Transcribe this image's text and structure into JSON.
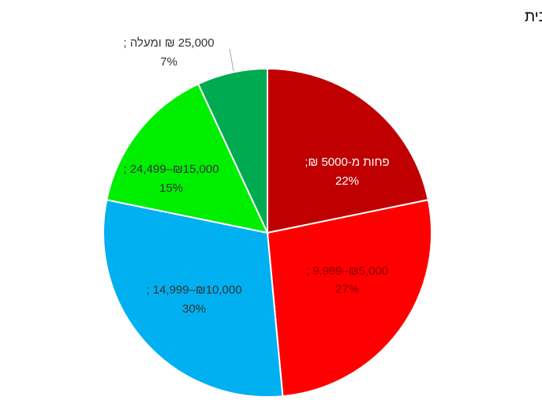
{
  "chart_data": {
    "type": "pie",
    "title": "% מתוך אלו שפוטרו/נמצאים בחל\"ת, לפי הכנסה חודשית ברוטו של משק בית",
    "legend": "none",
    "slices": [
      {
        "label": "פחות מ-5000 ₪;",
        "value": 22,
        "value_label": "22%",
        "color": "#C00000",
        "text_color": "#ffffff"
      },
      {
        "label": "₪5,000–9,999 ;",
        "value": 27,
        "value_label": "27%",
        "color": "#FF0000",
        "text_color": "#8B0000"
      },
      {
        "label": "₪10,000–14,999 ;",
        "value": 30,
        "value_label": "30%",
        "color": "#00B0F0",
        "text_color": "#333333"
      },
      {
        "label": "₪15,000–24,499 ;",
        "value": 15,
        "value_label": "15%",
        "color": "#00EE00",
        "text_color": "#333333"
      },
      {
        "label": "25,000 ₪ ומעלה ;",
        "value": 7,
        "value_label": "7%",
        "color": "#00AA50",
        "text_color": "#333333"
      }
    ]
  }
}
